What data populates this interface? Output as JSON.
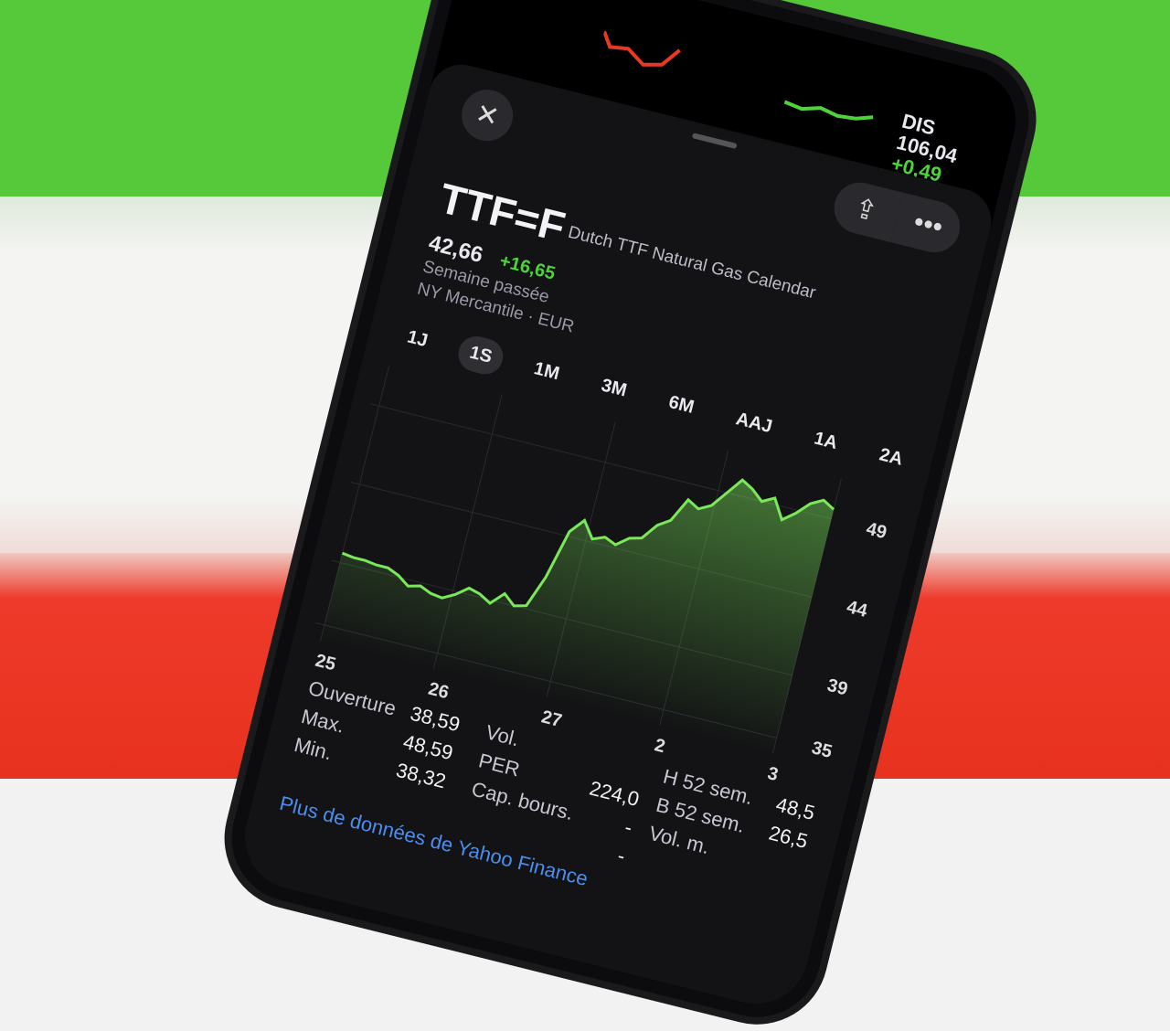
{
  "ticker_bar": [
    {
      "symbol": "",
      "price": "",
      "change": "",
      "trend": "negative"
    },
    {
      "symbol": "",
      "price": "",
      "change": "",
      "trend": "positive"
    },
    {
      "symbol": "DIS",
      "price": "106,04",
      "change": "+0,49",
      "trend": "positive"
    }
  ],
  "header": {
    "close_icon": "close-icon",
    "share_icon": "share-icon",
    "more_icon": "more-icon",
    "symbol": "TTF=F",
    "name": "Dutch TTF Natural Gas Calendar",
    "price": "42,66",
    "change": "+16,65",
    "period": "Semaine passée",
    "exchange": "NY Mercantile · EUR"
  },
  "ranges": [
    {
      "label": "1J"
    },
    {
      "label": "1S",
      "selected": true
    },
    {
      "label": "1M"
    },
    {
      "label": "3M"
    },
    {
      "label": "6M"
    },
    {
      "label": "AAJ"
    },
    {
      "label": "1A"
    },
    {
      "label": "2A"
    }
  ],
  "colors": {
    "line": "#7be85a",
    "positive": "#4fd33a",
    "negative": "#e83a22",
    "link": "#4a8ef0"
  },
  "chart_data": {
    "type": "area",
    "x_ticks": [
      "25",
      "26",
      "27",
      "2",
      "3"
    ],
    "y_ticks": [
      "49",
      "44",
      "39",
      "35"
    ],
    "ylim": [
      34,
      51
    ],
    "values": [
      39.6,
      39.5,
      39.5,
      39.4,
      39.4,
      39.1,
      38.6,
      38.8,
      38.5,
      38.4,
      38.8,
      39.4,
      39.2,
      38.8,
      39.6,
      39,
      39.2,
      41.2,
      44.3,
      45.2,
      44.2,
      44.5,
      44.2,
      44.8,
      45,
      46,
      46.5,
      48,
      47.6,
      48,
      49,
      50,
      49.6,
      49,
      49.4,
      48.2,
      48.8,
      49.6,
      50,
      49.6
    ],
    "grid": true
  },
  "stats": {
    "col1": [
      {
        "label": "Ouverture",
        "value": "38,59"
      },
      {
        "label": "Max.",
        "value": "48,59"
      },
      {
        "label": "Min.",
        "value": "38,32"
      }
    ],
    "col2": [
      {
        "label": "Vol.",
        "value": ""
      },
      {
        "label": "PER",
        "value": "224,0"
      },
      {
        "label": "Cap. bours.",
        "value": "-"
      },
      {
        "label": "",
        "value": "-"
      }
    ],
    "col3": [
      {
        "label": "H 52 sem.",
        "value": "48,5"
      },
      {
        "label": "B 52 sem.",
        "value": "26,5"
      },
      {
        "label": "Vol. m.",
        "value": ""
      }
    ]
  },
  "more_link": "Plus de données de Yahoo Finance"
}
